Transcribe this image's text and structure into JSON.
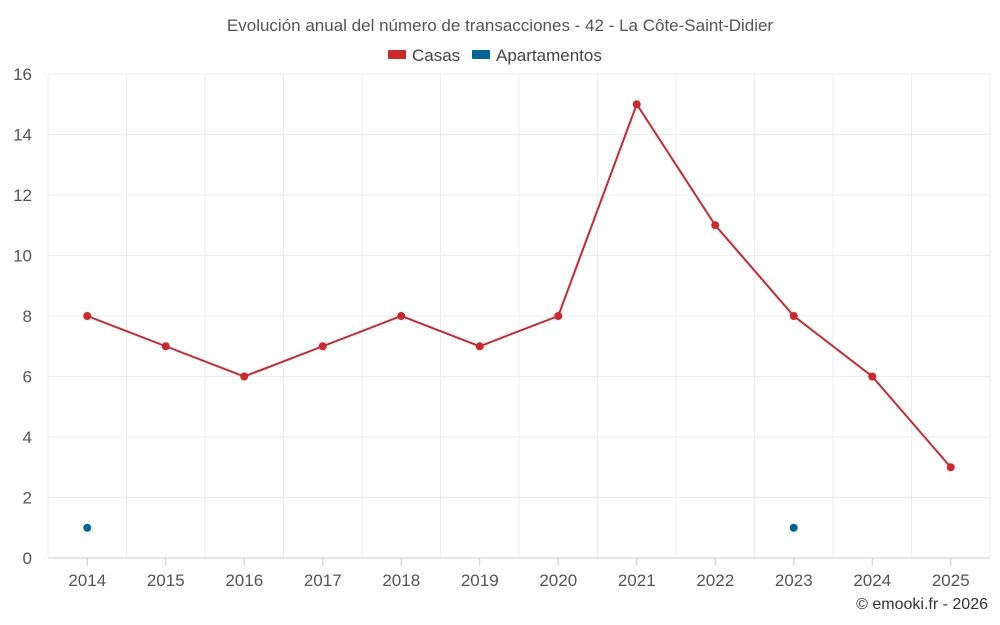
{
  "chart_data": {
    "type": "line",
    "title": "Evolución anual del número de transacciones - 42 - La Côte-Saint-Didier",
    "xlabel": "",
    "ylabel": "",
    "categories": [
      "2014",
      "2015",
      "2016",
      "2017",
      "2018",
      "2019",
      "2020",
      "2021",
      "2022",
      "2023",
      "2024",
      "2025"
    ],
    "series": [
      {
        "name": "Casas",
        "color": "#d0272c",
        "values": [
          8,
          7,
          6,
          7,
          8,
          7,
          8,
          15,
          11,
          8,
          6,
          3
        ]
      },
      {
        "name": "Apartamentos",
        "color": "#006599",
        "values": [
          1,
          null,
          null,
          null,
          null,
          null,
          null,
          null,
          null,
          1,
          null,
          null
        ]
      }
    ],
    "ylim": [
      0,
      16
    ],
    "yticks": [
      0,
      2,
      4,
      6,
      8,
      10,
      12,
      14,
      16
    ],
    "grid": true,
    "legend_position": "top-center"
  },
  "credit": "© emooki.fr - 2026"
}
